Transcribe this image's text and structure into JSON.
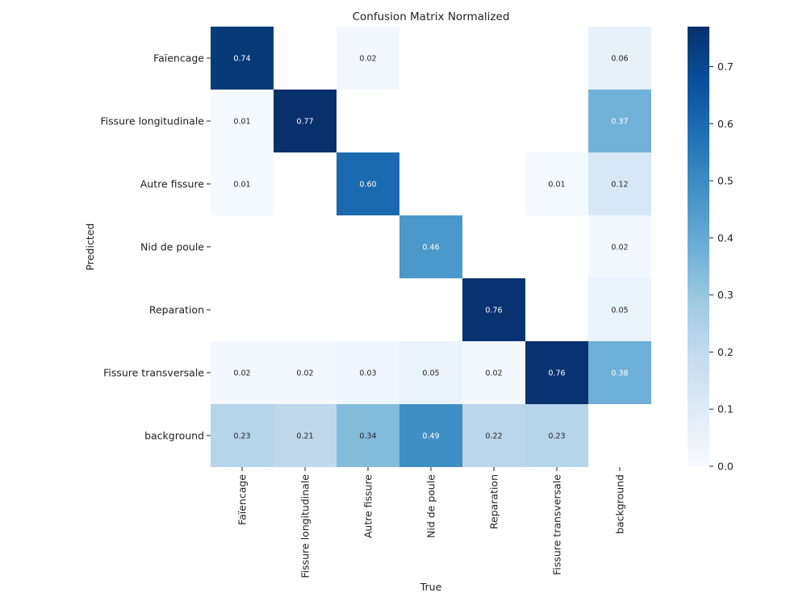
{
  "chart_data": {
    "type": "heatmap",
    "title": "Confusion Matrix Normalized",
    "xlabel": "True",
    "ylabel": "Predicted",
    "x_categories": [
      "Faïencage",
      "Fissure longitudinale",
      "Autre fissure",
      "Nid de poule",
      "Reparation",
      "Fissure transversale",
      "background"
    ],
    "y_categories": [
      "Faïencage",
      "Fissure longitudinale",
      "Autre fissure",
      "Nid de poule",
      "Reparation",
      "Fissure transversale",
      "background"
    ],
    "values": [
      [
        0.74,
        null,
        0.02,
        null,
        null,
        null,
        0.06
      ],
      [
        0.01,
        0.77,
        null,
        null,
        null,
        null,
        0.37
      ],
      [
        0.01,
        null,
        0.6,
        null,
        null,
        0.01,
        0.12
      ],
      [
        null,
        null,
        null,
        0.46,
        null,
        null,
        0.02
      ],
      [
        null,
        null,
        null,
        null,
        0.76,
        null,
        0.05
      ],
      [
        0.02,
        0.02,
        0.03,
        0.05,
        0.02,
        0.76,
        0.38
      ],
      [
        0.23,
        0.21,
        0.34,
        0.49,
        0.22,
        0.23,
        null
      ]
    ],
    "value_format": "2 decimals",
    "colormap": "Blues",
    "colorbar": {
      "range": [
        0,
        0.77
      ],
      "ticks": [
        0.0,
        0.1,
        0.2,
        0.3,
        0.4,
        0.5,
        0.6,
        0.7
      ],
      "tick_labels": [
        "0.0",
        "0.1",
        "0.2",
        "0.3",
        "0.4",
        "0.5",
        "0.6",
        "0.7"
      ]
    }
  },
  "colors": {
    "text_light": "#ffffff",
    "text_dark": "#262626",
    "axis": "#222222"
  }
}
